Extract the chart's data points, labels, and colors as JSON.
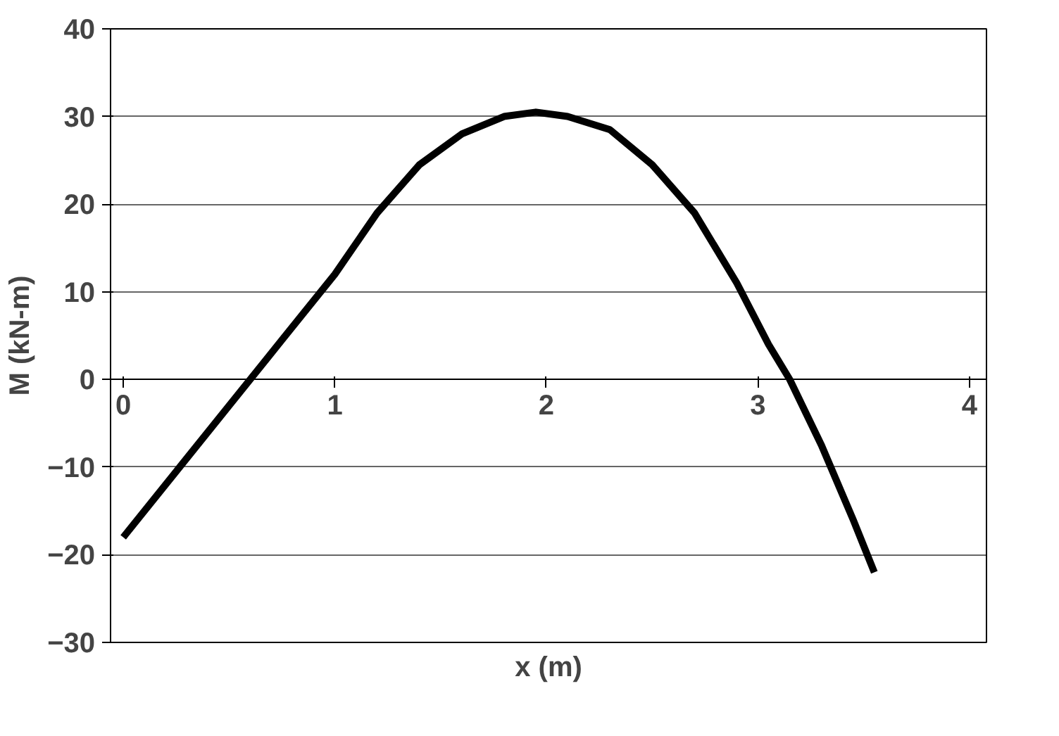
{
  "chart_data": {
    "type": "line",
    "xlabel": "x (m)",
    "ylabel": "M (kN-m)",
    "x": [
      0,
      0.25,
      0.5,
      0.75,
      1.0,
      1.2,
      1.4,
      1.6,
      1.8,
      1.95,
      2.1,
      2.3,
      2.5,
      2.7,
      2.9,
      3.05,
      3.15,
      3.3,
      3.45,
      3.55
    ],
    "series": [
      {
        "color": "#000000",
        "values": [
          -18,
          -10.5,
          -3,
          4.5,
          12,
          19,
          24.5,
          28,
          30,
          30.5,
          30,
          28.5,
          24.5,
          19,
          11,
          4,
          0,
          -7.5,
          -16,
          -22
        ]
      }
    ],
    "xlim": [
      -0.06,
      4.08
    ],
    "xticks": [
      0,
      1,
      2,
      3,
      4
    ],
    "ylim": [
      -30,
      40
    ],
    "yticks": [
      -30,
      -20,
      -10,
      0,
      10,
      20,
      30,
      40
    ],
    "grid": "y",
    "marker": "none",
    "line_style": "solid"
  }
}
